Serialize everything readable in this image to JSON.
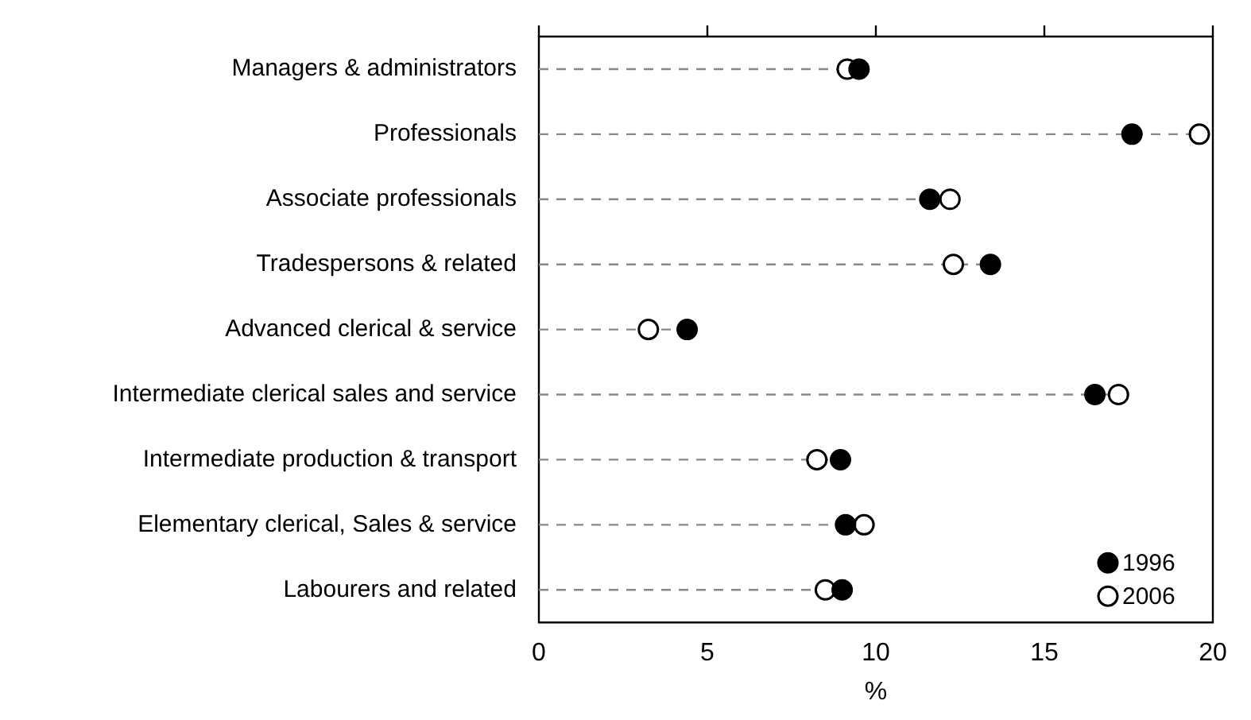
{
  "chart_data": {
    "type": "scatter",
    "orientation": "horizontal",
    "xlabel": "%",
    "categories": [
      "Managers & administrators",
      "Professionals",
      "Associate professionals",
      "Tradespersons & related",
      "Advanced clerical & service",
      "Intermediate clerical sales and service",
      "Intermediate production & transport",
      "Elementary clerical, Sales & service",
      "Labourers and related"
    ],
    "series": [
      {
        "name": "1996",
        "color": "#000000",
        "values": [
          9.5,
          17.6,
          11.6,
          13.4,
          4.4,
          16.5,
          8.95,
          9.1,
          9.0
        ]
      },
      {
        "name": "2006",
        "color": "#ffffff",
        "values": [
          9.15,
          19.6,
          12.2,
          12.3,
          3.25,
          17.2,
          8.25,
          9.65,
          8.5
        ]
      }
    ],
    "xlim": [
      0,
      20
    ],
    "xticks": [
      0,
      5,
      10,
      15,
      20
    ],
    "grid": "y",
    "legend": "bottom right",
    "marker": "circle"
  }
}
